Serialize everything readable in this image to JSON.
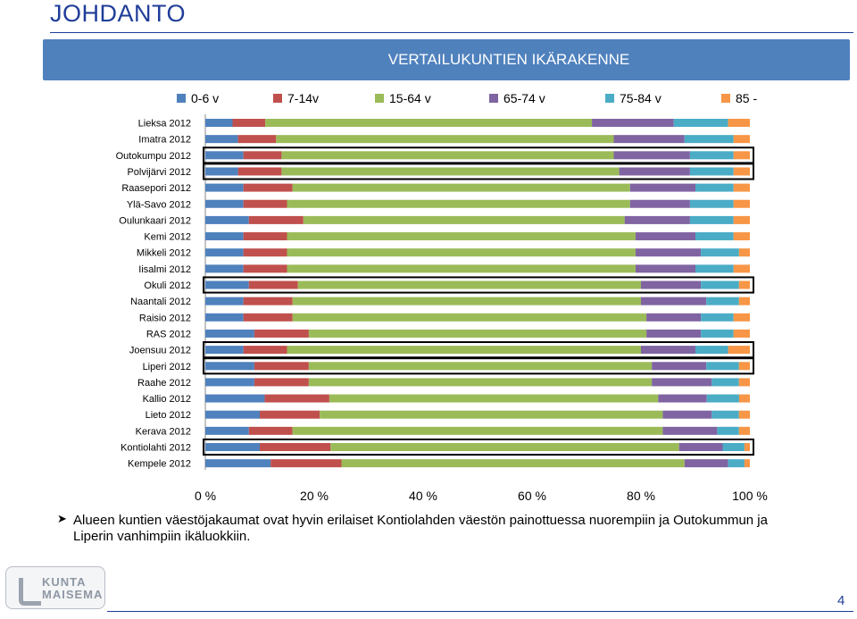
{
  "page": {
    "title": "JOHDANTO",
    "page_number": "4"
  },
  "banner": {
    "title": "VERTAILUKUNTIEN IKÄRAKENNE"
  },
  "note": {
    "text": "Alueen kuntien väestöjakaumat ovat hyvin erilaiset Kontiolahden väestön painottuessa nuorempiin ja Outokummun ja Liperin vanhimpiin ikäluokkiin."
  },
  "logo": {
    "line1": "KUNTA",
    "line2": "MAISEMA"
  },
  "chart_data": {
    "type": "bar",
    "orientation": "horizontal",
    "stacked": "percent",
    "title": "VERTAILUKUNTIEN IKÄRAKENNE",
    "categories": [
      "Lieksa 2012",
      "Imatra 2012",
      "Outokumpu 2012",
      "Polvijärvi 2012",
      "Raasepori 2012",
      "Ylä-Savo 2012",
      "Oulunkaari 2012",
      "Kemi 2012",
      "Mikkeli 2012",
      "Iisalmi 2012",
      "Okuli 2012",
      "Naantali 2012",
      "Raisio 2012",
      "RAS 2012",
      "Joensuu 2012",
      "Liperi 2012",
      "Raahe 2012",
      "Kallio 2012",
      "Lieto 2012",
      "Kerava 2012",
      "Kontiolahti 2012",
      "Kempele 2012"
    ],
    "series": [
      {
        "name": "0-6 v",
        "color": "#4f81bd",
        "values": [
          5,
          6,
          7,
          6,
          7,
          7,
          8,
          7,
          7,
          7,
          8,
          7,
          7,
          9,
          7,
          9,
          9,
          11,
          10,
          8,
          10,
          12
        ]
      },
      {
        "name": "7-14v",
        "color": "#c0504d",
        "values": [
          6,
          7,
          7,
          8,
          9,
          8,
          10,
          8,
          8,
          8,
          9,
          9,
          9,
          10,
          8,
          10,
          10,
          12,
          11,
          8,
          13,
          13
        ]
      },
      {
        "name": "15-64 v",
        "color": "#9bbb59",
        "values": [
          60,
          62,
          61,
          62,
          62,
          63,
          59,
          64,
          64,
          64,
          63,
          64,
          65,
          62,
          65,
          63,
          63,
          61,
          63,
          68,
          64,
          63
        ]
      },
      {
        "name": "65-74 v",
        "color": "#8064a2",
        "values": [
          15,
          13,
          14,
          13,
          12,
          11,
          12,
          11,
          12,
          11,
          11,
          12,
          10,
          10,
          10,
          10,
          11,
          9,
          9,
          10,
          8,
          8
        ]
      },
      {
        "name": "75-84 v",
        "color": "#4bacc6",
        "values": [
          10,
          9,
          8,
          8,
          7,
          8,
          8,
          7,
          7,
          7,
          7,
          6,
          6,
          6,
          6,
          6,
          5,
          6,
          5,
          4,
          4,
          3
        ]
      },
      {
        "name": "85 -",
        "color": "#f79646",
        "values": [
          4,
          3,
          3,
          3,
          3,
          3,
          3,
          3,
          2,
          3,
          2,
          2,
          3,
          3,
          4,
          2,
          2,
          2,
          2,
          2,
          1,
          1
        ]
      }
    ],
    "xlim": [
      0,
      100
    ],
    "xticks": [
      "0 %",
      "20 %",
      "40 %",
      "60 %",
      "80 %",
      "100 %"
    ],
    "legend_position": "top",
    "highlighted": [
      "Outokumpu 2012",
      "Polvijärvi 2012",
      "Okuli 2012",
      "Joensuu 2012",
      "Liperi 2012",
      "Kontiolahti 2012"
    ]
  }
}
